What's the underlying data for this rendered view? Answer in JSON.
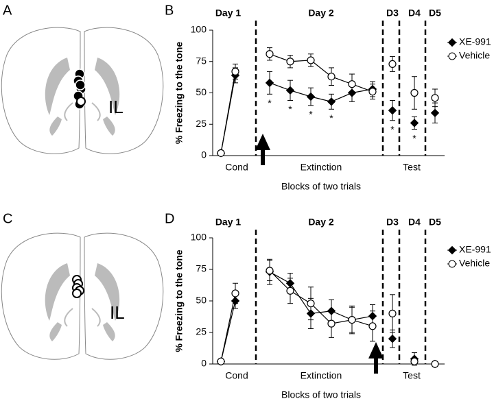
{
  "panel_labels": [
    "A",
    "B",
    "C",
    "D"
  ],
  "region_labels": [
    "IL",
    "IL"
  ],
  "chart_data": [
    {
      "type": "line",
      "y_label": "% Freezing to the tone",
      "x_label": "Blocks of two trials",
      "day_labels": [
        "Day 1",
        "Day 2",
        "D3",
        "D4",
        "D5"
      ],
      "phase_labels": [
        "Cond",
        "Extinction",
        "Test"
      ],
      "categories": [
        null,
        null,
        null,
        null,
        null,
        null,
        null,
        null,
        null,
        null,
        null,
        null,
        null,
        null,
        null
      ],
      "ylim": [
        0,
        100
      ],
      "yticks": [
        0,
        25,
        50,
        75,
        100
      ],
      "series": [
        {
          "name": "XE-991",
          "color": "#000000",
          "marker": "diamond",
          "marker_fill": "#000000",
          "values": [
            2,
            64,
            null,
            58,
            52,
            47,
            43,
            50,
            53,
            null,
            36,
            null,
            26,
            null,
            34
          ],
          "errors": [
            0,
            6,
            null,
            9,
            8,
            7,
            6,
            7,
            6,
            null,
            8,
            null,
            5,
            null,
            8
          ],
          "annotations": [
            null,
            null,
            null,
            "*",
            "*",
            "*",
            "*",
            null,
            null,
            null,
            "*",
            null,
            "*",
            null,
            null
          ]
        },
        {
          "name": "Vehicle",
          "color": "#000000",
          "marker": "circle",
          "marker_fill": "#ffffff",
          "values": [
            2,
            67,
            null,
            81,
            75,
            76,
            63,
            57,
            51,
            null,
            73,
            null,
            50,
            null,
            46
          ],
          "errors": [
            0,
            6,
            null,
            5,
            5,
            5,
            7,
            8,
            6,
            null,
            6,
            null,
            13,
            null,
            7
          ]
        }
      ]
    },
    {
      "type": "line",
      "y_label": "% Freezing to the tone",
      "x_label": "Blocks of two trials",
      "day_labels": [
        "Day 1",
        "Day 2",
        "D3",
        "D4",
        "D5"
      ],
      "phase_labels": [
        "Cond",
        "Extinction",
        "Test"
      ],
      "categories": [
        null,
        null,
        null,
        null,
        null,
        null,
        null,
        null,
        null,
        null,
        null,
        null,
        null,
        null,
        null
      ],
      "ylim": [
        0,
        100
      ],
      "yticks": [
        0,
        25,
        50,
        75,
        100
      ],
      "series": [
        {
          "name": "XE-991",
          "color": "#000000",
          "marker": "diamond",
          "marker_fill": "#000000",
          "values": [
            2,
            50,
            null,
            73,
            64,
            40,
            42,
            35,
            38,
            null,
            20,
            null,
            4,
            null,
            0
          ],
          "errors": [
            0,
            6,
            null,
            10,
            8,
            12,
            9,
            10,
            9,
            null,
            7,
            null,
            5,
            null,
            0
          ]
        },
        {
          "name": "Vehicle",
          "color": "#000000",
          "marker": "circle",
          "marker_fill": "#ffffff",
          "values": [
            2,
            56,
            null,
            74,
            58,
            48,
            32,
            35,
            30,
            null,
            40,
            null,
            2,
            null,
            0
          ],
          "errors": [
            0,
            8,
            null,
            8,
            10,
            13,
            11,
            11,
            12,
            null,
            15,
            null,
            2,
            null,
            0
          ]
        }
      ]
    }
  ]
}
